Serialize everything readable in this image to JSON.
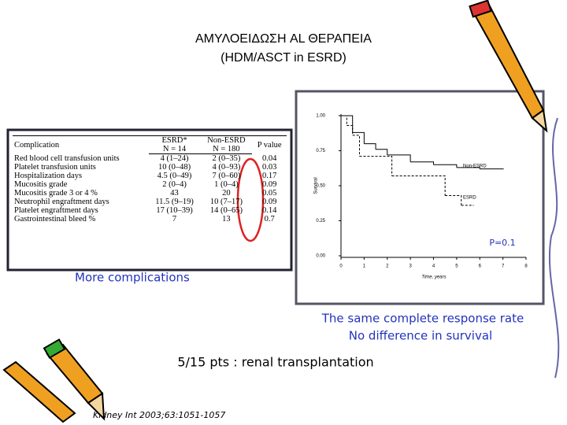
{
  "title": [
    "ΑΜΥΛΟΕΙΔΩΣΗ AL ΘΕΡΑΠΕΙΑ",
    "(HDM/ASCT in ESRD)"
  ],
  "table": {
    "header": {
      "complication": "Complication",
      "esrd": [
        "ESRD*",
        "N = 14"
      ],
      "non_esrd": [
        "Non-ESRD",
        "N = 180"
      ],
      "p": "P value"
    },
    "rows": [
      [
        "Red blood cell transfusion units",
        "4 (1–24)",
        "2 (0–35)",
        "0.04"
      ],
      [
        "Platelet transfusion units",
        "10 (0–48)",
        "4 (0–93)",
        "0.03"
      ],
      [
        "Hospitalization days",
        "4.5 (0–49)",
        "7 (0–60)",
        "0.17"
      ],
      [
        "Mucositis grade",
        "2 (0–4)",
        "1 (0–4)",
        "0.09"
      ],
      [
        "Mucositis grade 3 or 4 %",
        "43",
        "20",
        "0.05"
      ],
      [
        "Neutrophil engraftment days",
        "11.5 (9–19)",
        "10 (7–17)",
        "0.09"
      ],
      [
        "Platelet engraftment days",
        "17 (10–39)",
        "14 (0–65)",
        "0.14"
      ],
      [
        "Gastrointestinal bleed %",
        "7",
        "13",
        "0.7"
      ]
    ]
  },
  "chart_data": {
    "type": "line",
    "xlabel": "Time, years",
    "ylabel": "Survival",
    "xlim": [
      0,
      8
    ],
    "xticks": [
      0,
      1,
      2,
      3,
      4,
      5,
      6,
      7,
      8
    ],
    "ylim": [
      0,
      1
    ],
    "yticks": [
      {
        "value": 0,
        "label": "0.00"
      },
      {
        "value": 0.25,
        "label": "0.25"
      },
      {
        "value": 0.5,
        "label": "0.50"
      },
      {
        "value": 0.75,
        "label": "0.75"
      },
      {
        "value": 1,
        "label": "1.00"
      }
    ],
    "annotation": "P=0.1",
    "series": [
      {
        "name": "Non-ESRD",
        "color": "#000000",
        "x": [
          0,
          0.5,
          1,
          1.5,
          2,
          3,
          4,
          5,
          6,
          7
        ],
        "values": [
          1,
          0.88,
          0.8,
          0.76,
          0.72,
          0.67,
          0.65,
          0.63,
          0.62,
          0.62
        ]
      },
      {
        "name": "ESRD",
        "color": "#000000",
        "x": [
          0,
          0.25,
          0.5,
          0.8,
          2.2,
          4.5,
          5.2,
          5.7
        ],
        "values": [
          1,
          0.93,
          0.86,
          0.71,
          0.57,
          0.43,
          0.36,
          0.36
        ]
      }
    ]
  },
  "left_note": "More complications",
  "right_notes": [
    "The same complete response rate",
    "No difference in survival"
  ],
  "center_note": "5/15 pts : renal transplantation",
  "reference": "Kidney Int 2003;63:1051-1057"
}
